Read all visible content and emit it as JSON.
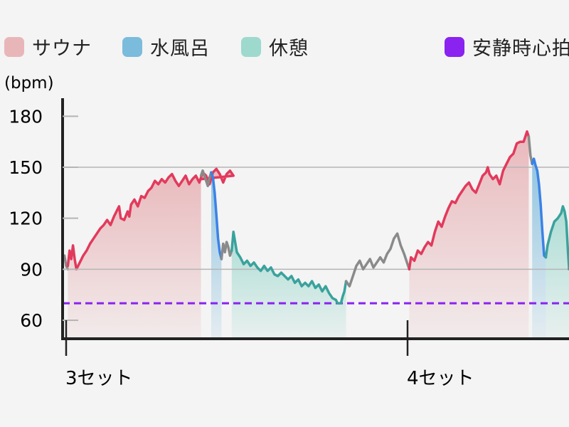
{
  "legend": [
    {
      "label": "サウナ",
      "color": "#e8b6b9"
    },
    {
      "label": "水風呂",
      "color": "#7bbbdc"
    },
    {
      "label": "休憩",
      "color": "#9ed9cd"
    },
    {
      "label": "安静時心拍",
      "color": "#8a22f0"
    }
  ],
  "colors": {
    "sauna_line": "#e23a5c",
    "sauna_fill": "#e8b6b9",
    "cold_line": "#3b82e6",
    "cold_fill": "#8cc2df",
    "rest_line": "#3aa29d",
    "rest_fill": "#a9dcd3",
    "transition_line": "#8a8a8a",
    "resting_line": "#8a22f0",
    "grid": "#b5b5b5",
    "axis": "#222222",
    "background": "#f4f4f4"
  },
  "chart_data": {
    "type": "line",
    "ylabel": "(bpm)",
    "y_ticks": [
      60,
      90,
      120,
      150,
      180
    ],
    "y_gridlines": [
      90,
      150
    ],
    "ylim": [
      50,
      190
    ],
    "x_tick_labels": [
      {
        "label": "3セット",
        "t": 0
      },
      {
        "label": "4セット",
        "t": 100
      }
    ],
    "xlim": [
      -0.5,
      148
    ],
    "resting_heart_rate": 70,
    "segments": [
      {
        "phase": "transition",
        "points": [
          [
            -0.5,
            98
          ],
          [
            0,
            92
          ],
          [
            0.5,
            90
          ]
        ]
      },
      {
        "phase": "sauna",
        "points": [
          [
            0.5,
            92
          ],
          [
            1,
            101
          ],
          [
            1.5,
            96
          ],
          [
            2,
            104
          ],
          [
            2.5,
            96
          ],
          [
            3,
            90
          ],
          [
            4,
            94
          ],
          [
            5,
            98
          ],
          [
            6,
            101
          ],
          [
            7,
            105
          ],
          [
            8,
            108
          ],
          [
            9,
            111
          ],
          [
            10,
            114
          ],
          [
            11,
            116
          ],
          [
            12,
            119
          ],
          [
            13,
            116
          ],
          [
            14,
            121
          ],
          [
            15,
            125
          ],
          [
            15.5,
            127
          ],
          [
            16,
            120
          ],
          [
            17,
            119
          ],
          [
            18,
            124
          ],
          [
            18.5,
            121
          ],
          [
            19,
            128
          ],
          [
            20,
            131
          ],
          [
            21,
            127
          ],
          [
            22,
            133
          ],
          [
            23,
            132
          ],
          [
            24,
            136
          ],
          [
            25,
            138
          ],
          [
            26,
            142
          ],
          [
            27,
            140
          ],
          [
            28,
            143
          ],
          [
            29,
            141
          ],
          [
            30,
            144
          ],
          [
            31,
            146
          ],
          [
            32,
            142
          ],
          [
            33,
            139
          ],
          [
            34,
            142
          ],
          [
            35,
            145
          ],
          [
            36,
            140
          ],
          [
            37,
            143
          ],
          [
            38,
            145
          ],
          [
            39,
            141
          ],
          [
            40,
            147
          ],
          [
            41,
            145
          ],
          [
            42,
            140
          ],
          [
            43,
            147
          ],
          [
            44,
            149
          ],
          [
            45,
            146
          ],
          [
            46,
            141
          ],
          [
            47,
            146
          ],
          [
            48,
            148
          ],
          [
            49,
            145
          ],
          [
            39.5,
            143
          ]
        ]
      },
      {
        "phase": "transition",
        "points": [
          [
            39.5,
            145
          ],
          [
            40,
            148
          ],
          [
            40.5,
            145
          ],
          [
            41,
            142
          ],
          [
            41.5,
            139
          ],
          [
            42,
            144
          ],
          [
            42.5,
            147
          ]
        ]
      },
      {
        "phase": "cold",
        "points": [
          [
            42.5,
            147
          ],
          [
            43,
            144
          ],
          [
            43.5,
            135
          ],
          [
            44,
            122
          ],
          [
            44.5,
            108
          ],
          [
            45,
            100
          ],
          [
            45.5,
            96
          ]
        ]
      },
      {
        "phase": "transition",
        "points": [
          [
            45.5,
            96
          ],
          [
            46,
            105
          ],
          [
            46.5,
            100
          ],
          [
            47,
            106
          ],
          [
            47.5,
            103
          ],
          [
            48,
            98
          ],
          [
            48.5,
            101
          ]
        ]
      },
      {
        "phase": "rest",
        "points": [
          [
            48.5,
            101
          ],
          [
            49,
            112
          ],
          [
            49.5,
            106
          ],
          [
            50,
            100
          ],
          [
            51,
            97
          ],
          [
            52,
            93
          ],
          [
            53,
            95
          ],
          [
            54,
            92
          ],
          [
            55,
            94
          ],
          [
            56,
            91
          ],
          [
            57,
            89
          ],
          [
            58,
            92
          ],
          [
            59,
            89
          ],
          [
            60,
            91
          ],
          [
            61,
            87
          ],
          [
            62,
            86
          ],
          [
            63,
            88
          ],
          [
            64,
            86
          ],
          [
            65,
            84
          ],
          [
            66,
            86
          ],
          [
            67,
            82
          ],
          [
            68,
            84
          ],
          [
            69,
            80
          ],
          [
            70,
            82
          ],
          [
            71,
            80
          ],
          [
            72,
            83
          ],
          [
            73,
            79
          ],
          [
            74,
            81
          ],
          [
            75,
            77
          ],
          [
            76,
            80
          ],
          [
            77,
            76
          ],
          [
            78,
            73
          ],
          [
            79,
            72
          ],
          [
            79.5,
            70
          ],
          [
            80.5,
            70
          ],
          [
            81,
            74
          ],
          [
            81.5,
            77
          ],
          [
            82,
            83
          ]
        ]
      },
      {
        "phase": "transition",
        "points": [
          [
            82,
            83
          ],
          [
            83,
            80
          ],
          [
            84,
            86
          ],
          [
            85,
            92
          ],
          [
            86,
            95
          ],
          [
            87,
            90
          ],
          [
            88,
            93
          ],
          [
            89,
            96
          ],
          [
            90,
            91
          ],
          [
            91,
            94
          ],
          [
            92,
            97
          ],
          [
            93,
            94
          ],
          [
            94,
            99
          ],
          [
            95,
            102
          ],
          [
            96,
            108
          ],
          [
            97,
            111
          ],
          [
            98,
            104
          ],
          [
            99,
            99
          ],
          [
            100,
            93
          ],
          [
            100.5,
            90
          ]
        ]
      },
      {
        "phase": "sauna",
        "points": [
          [
            100.5,
            90
          ],
          [
            101,
            97
          ],
          [
            102,
            95
          ],
          [
            103,
            101
          ],
          [
            104,
            99
          ],
          [
            105,
            103
          ],
          [
            106,
            106
          ],
          [
            107,
            104
          ],
          [
            108,
            112
          ],
          [
            109,
            118
          ],
          [
            110,
            115
          ],
          [
            111,
            121
          ],
          [
            112,
            126
          ],
          [
            113,
            130
          ],
          [
            114,
            129
          ],
          [
            115,
            133
          ],
          [
            116,
            136
          ],
          [
            117,
            139
          ],
          [
            118,
            141
          ],
          [
            119,
            137
          ],
          [
            120,
            135
          ],
          [
            121,
            140
          ],
          [
            122,
            145
          ],
          [
            123,
            147
          ],
          [
            123.5,
            150
          ],
          [
            124,
            146
          ],
          [
            125,
            143
          ],
          [
            126,
            145
          ],
          [
            127,
            140
          ],
          [
            128,
            148
          ],
          [
            129,
            152
          ],
          [
            130,
            156
          ],
          [
            131,
            158
          ],
          [
            132,
            164
          ],
          [
            133,
            165
          ],
          [
            134,
            165
          ],
          [
            135,
            171
          ],
          [
            135.5,
            168
          ]
        ]
      },
      {
        "phase": "transition",
        "points": [
          [
            135.5,
            168
          ],
          [
            136,
            157
          ],
          [
            136.5,
            152
          ]
        ]
      },
      {
        "phase": "cold",
        "points": [
          [
            136.5,
            152
          ],
          [
            137,
            155
          ],
          [
            137.5,
            151
          ],
          [
            138,
            148
          ],
          [
            138.5,
            140
          ],
          [
            139,
            128
          ],
          [
            139.5,
            112
          ],
          [
            140,
            98
          ],
          [
            140.5,
            97
          ]
        ]
      },
      {
        "phase": "rest",
        "points": [
          [
            140.5,
            97
          ],
          [
            141,
            104
          ],
          [
            142,
            112
          ],
          [
            143,
            118
          ],
          [
            144,
            120
          ],
          [
            145,
            123
          ],
          [
            145.5,
            127
          ],
          [
            146,
            124
          ],
          [
            146.5,
            118
          ],
          [
            147,
            100
          ],
          [
            147.5,
            91
          ],
          [
            148,
            90
          ]
        ]
      }
    ]
  }
}
